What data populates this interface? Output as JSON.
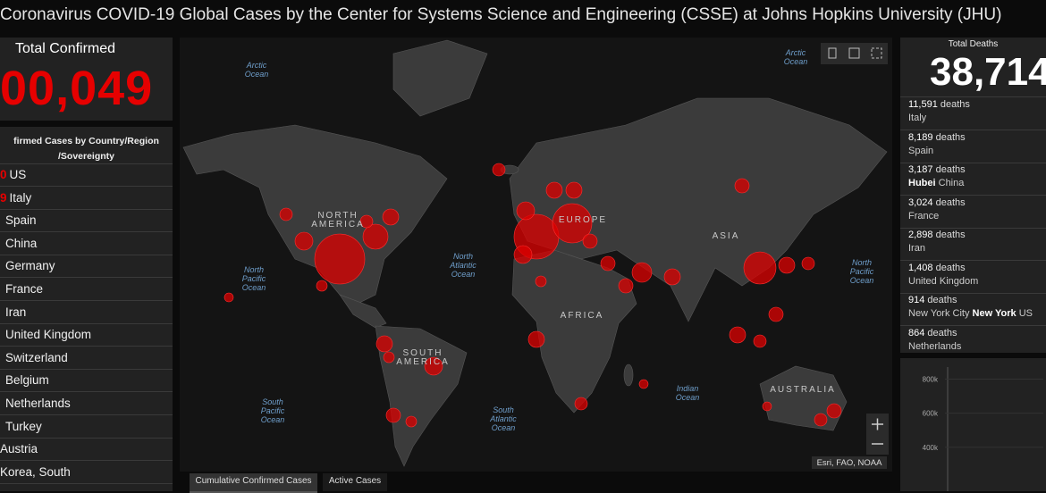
{
  "header": {
    "title": "Coronavirus COVID-19 Global Cases by the Center for Systems Science and Engineering (CSSE) at Johns Hopkins University (JHU)"
  },
  "total_confirmed": {
    "label": "Total Confirmed",
    "value": "00,049"
  },
  "country_list": {
    "heading": [
      "firmed Cases by Country/Region",
      "/Sovereignty"
    ],
    "rows": [
      {
        "count": "0",
        "name": "US"
      },
      {
        "count": "9",
        "name": "Italy"
      },
      {
        "name": "Spain"
      },
      {
        "name": "China"
      },
      {
        "name": "Germany"
      },
      {
        "name": "France"
      },
      {
        "name": "Iran"
      },
      {
        "name": "United Kingdom"
      },
      {
        "name": "Switzerland"
      },
      {
        "name": "Belgium"
      },
      {
        "name": "Netherlands"
      },
      {
        "name": "Turkey"
      },
      {
        "name": "Austria"
      },
      {
        "name": "Korea, South"
      }
    ]
  },
  "map": {
    "labels": [
      {
        "text": "Arctic\nOcean",
        "kind": "ocean"
      },
      {
        "text": "Arctic\nOcean",
        "kind": "ocean"
      },
      {
        "text": "NORTH\nAMERICA",
        "kind": "land"
      },
      {
        "text": "North\nPacific\nOcean",
        "kind": "ocean"
      },
      {
        "text": "North\nAtlantic\nOcean",
        "kind": "ocean"
      },
      {
        "text": "EUROPE",
        "kind": "land"
      },
      {
        "text": "ASIA",
        "kind": "land"
      },
      {
        "text": "North\nPacific\nOcean",
        "kind": "ocean"
      },
      {
        "text": "AFRICA",
        "kind": "land"
      },
      {
        "text": "SOUTH\nAMERICA",
        "kind": "land"
      },
      {
        "text": "South\nPacific\nOcean",
        "kind": "ocean"
      },
      {
        "text": "South\nAtlantic\nOcean",
        "kind": "ocean"
      },
      {
        "text": "Indian\nOcean",
        "kind": "ocean"
      },
      {
        "text": "AUSTRALIA",
        "kind": "land"
      }
    ],
    "attribution": "Esri, FAO, NOAA"
  },
  "tabs": [
    "Cumulative Confirmed Cases",
    "Active Cases"
  ],
  "total_deaths": {
    "label": "Total Deaths",
    "value": "38,714"
  },
  "deaths_list": [
    {
      "count": "11,591",
      "unit": "deaths",
      "place": [
        {
          "text": "Italy"
        }
      ]
    },
    {
      "count": "8,189",
      "unit": "deaths",
      "place": [
        {
          "text": "Spain"
        }
      ]
    },
    {
      "count": "3,187",
      "unit": "deaths",
      "place": [
        {
          "text": "Hubei",
          "bold": true
        },
        {
          "text": "China"
        }
      ]
    },
    {
      "count": "3,024",
      "unit": "deaths",
      "place": [
        {
          "text": "France"
        }
      ]
    },
    {
      "count": "2,898",
      "unit": "deaths",
      "place": [
        {
          "text": "Iran"
        }
      ]
    },
    {
      "count": "1,408",
      "unit": "deaths",
      "place": [
        {
          "text": "United Kingdom"
        }
      ]
    },
    {
      "count": "914",
      "unit": "deaths",
      "place": [
        {
          "text": "New York City"
        },
        {
          "text": "New York",
          "bold": true
        },
        {
          "text": "US"
        }
      ]
    },
    {
      "count": "864",
      "unit": "deaths",
      "place": [
        {
          "text": "Netherlands"
        }
      ]
    }
  ],
  "trend_chart": {
    "ylim": [
      0,
      850000
    ],
    "yticks": [
      {
        "value": 800000,
        "label": "800k"
      },
      {
        "value": 600000,
        "label": "600k"
      },
      {
        "value": 400000,
        "label": "400k"
      }
    ]
  }
}
